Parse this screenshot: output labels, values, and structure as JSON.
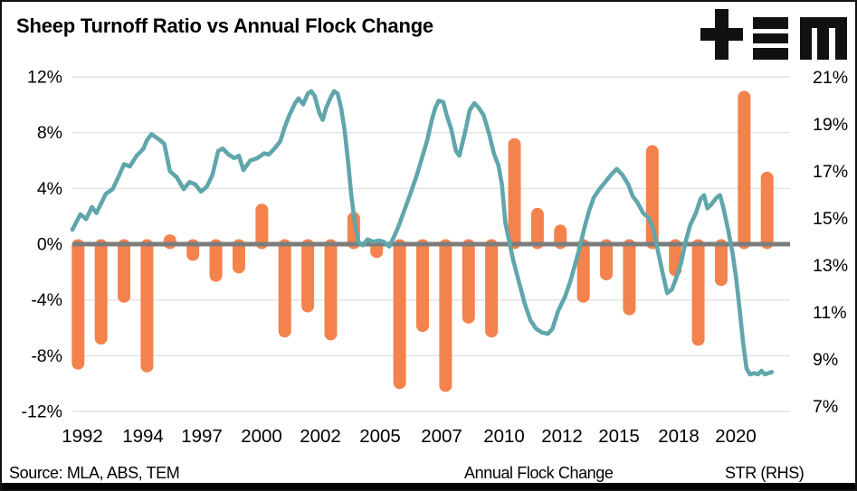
{
  "title": "Sheep Turnoff Ratio vs Annual Flock Change",
  "logo": {
    "name": "TEM logo"
  },
  "source_note": "Source: MLA, ABS, TEM",
  "legend": {
    "bar": {
      "label": "Annual Flock Change"
    },
    "line": {
      "label": "STR (RHS)"
    }
  },
  "colors": {
    "bar": "#F4824D",
    "line": "#60A6AB",
    "zero_line": "#7C7C7C",
    "gridline": "#E3E3E3",
    "text": "#000000",
    "logo": "#111111"
  },
  "chart_data": {
    "type": "bar+line combo (bars on left axis, line on right axis)",
    "title": "Sheep Turnoff Ratio vs Annual Flock Change",
    "x_axis": {
      "ticks": [
        "1992",
        "1994",
        "1997",
        "2000",
        "2002",
        "2005",
        "2007",
        "2010",
        "2012",
        "2015",
        "2018",
        "2020"
      ]
    },
    "left_axis": {
      "series": "Annual Flock Change",
      "ticks": [
        "12%",
        "8%",
        "4%",
        "0%",
        "-4%",
        "-8%",
        "-12%"
      ],
      "tick_values": [
        12,
        8,
        4,
        0,
        -4,
        -8,
        -12
      ],
      "range": [
        -12,
        12
      ],
      "unit": "%"
    },
    "right_axis": {
      "series": "STR (RHS)",
      "ticks": [
        "21%",
        "19%",
        "17%",
        "15%",
        "13%",
        "11%",
        "9%",
        "7%"
      ],
      "tick_values": [
        21,
        19,
        17,
        15,
        13,
        11,
        9,
        7
      ],
      "range": [
        7,
        21
      ],
      "unit": "%"
    },
    "grid": "horizontal light gridlines (left-axis ticks); thick gray zero line",
    "legend_position": "bottom",
    "bars": {
      "name": "Annual Flock Change",
      "axis": "left",
      "years": [
        1992,
        1993,
        1994,
        1995,
        1996,
        1997,
        1998,
        1999,
        2000,
        2001,
        2002,
        2003,
        2004,
        2005,
        2006,
        2007,
        2008,
        2009,
        2010,
        2011,
        2012,
        2013,
        2014,
        2015,
        2016,
        2017,
        2018,
        2019,
        2020,
        2021,
        2022
      ],
      "values": [
        -9.0,
        -7.2,
        -4.2,
        -9.2,
        0.7,
        -1.2,
        -2.7,
        -2.1,
        2.9,
        -6.7,
        -4.9,
        -6.9,
        2.3,
        -1.0,
        -10.4,
        -6.3,
        -10.6,
        -5.7,
        -6.7,
        7.6,
        2.6,
        1.4,
        -4.2,
        -2.6,
        -5.1,
        7.1,
        -2.3,
        -7.3,
        -3.0,
        11.0,
        5.2
      ]
    },
    "line": {
      "name": "STR (RHS)",
      "axis": "right",
      "points": [
        [
          1991.75,
          14.6
        ],
        [
          1992.1,
          15.25
        ],
        [
          1992.35,
          15.05
        ],
        [
          1992.6,
          15.55
        ],
        [
          1992.8,
          15.3
        ],
        [
          1993.0,
          15.7
        ],
        [
          1993.2,
          16.1
        ],
        [
          1993.5,
          16.3
        ],
        [
          1993.75,
          16.8
        ],
        [
          1994.0,
          17.35
        ],
        [
          1994.25,
          17.25
        ],
        [
          1994.55,
          17.7
        ],
        [
          1994.85,
          18.0
        ],
        [
          1995.0,
          18.35
        ],
        [
          1995.2,
          18.6
        ],
        [
          1995.5,
          18.4
        ],
        [
          1995.75,
          18.2
        ],
        [
          1996.0,
          17.05
        ],
        [
          1996.3,
          16.8
        ],
        [
          1996.6,
          16.3
        ],
        [
          1996.85,
          16.6
        ],
        [
          1997.1,
          16.5
        ],
        [
          1997.35,
          16.2
        ],
        [
          1997.6,
          16.4
        ],
        [
          1997.85,
          16.9
        ],
        [
          1998.1,
          17.9
        ],
        [
          1998.3,
          18.0
        ],
        [
          1998.55,
          17.75
        ],
        [
          1998.8,
          17.6
        ],
        [
          1999.0,
          17.7
        ],
        [
          1999.2,
          17.1
        ],
        [
          1999.5,
          17.5
        ],
        [
          1999.8,
          17.6
        ],
        [
          2000.1,
          17.8
        ],
        [
          2000.3,
          17.75
        ],
        [
          2000.55,
          18.0
        ],
        [
          2000.8,
          18.3
        ],
        [
          2001.0,
          18.9
        ],
        [
          2001.2,
          19.4
        ],
        [
          2001.45,
          19.9
        ],
        [
          2001.6,
          20.1
        ],
        [
          2001.8,
          19.85
        ],
        [
          2002.0,
          20.3
        ],
        [
          2002.15,
          20.4
        ],
        [
          2002.3,
          20.2
        ],
        [
          2002.5,
          19.5
        ],
        [
          2002.65,
          19.2
        ],
        [
          2002.8,
          19.7
        ],
        [
          2003.0,
          20.15
        ],
        [
          2003.15,
          20.4
        ],
        [
          2003.3,
          20.3
        ],
        [
          2003.45,
          19.7
        ],
        [
          2003.6,
          18.8
        ],
        [
          2003.75,
          17.5
        ],
        [
          2003.9,
          16.0
        ],
        [
          2004.05,
          14.9
        ],
        [
          2004.2,
          14.1
        ],
        [
          2004.4,
          13.95
        ],
        [
          2004.6,
          14.2
        ],
        [
          2004.85,
          14.1
        ],
        [
          2005.1,
          14.15
        ],
        [
          2005.3,
          14.1
        ],
        [
          2005.55,
          13.9
        ],
        [
          2005.75,
          14.3
        ],
        [
          2005.95,
          14.75
        ],
        [
          2006.2,
          15.4
        ],
        [
          2006.5,
          16.2
        ],
        [
          2006.75,
          16.9
        ],
        [
          2007.0,
          17.7
        ],
        [
          2007.2,
          18.35
        ],
        [
          2007.4,
          19.2
        ],
        [
          2007.55,
          19.7
        ],
        [
          2007.7,
          20.0
        ],
        [
          2007.9,
          19.95
        ],
        [
          2008.05,
          19.4
        ],
        [
          2008.25,
          18.8
        ],
        [
          2008.45,
          17.9
        ],
        [
          2008.6,
          17.7
        ],
        [
          2008.85,
          18.7
        ],
        [
          2009.05,
          19.6
        ],
        [
          2009.25,
          19.9
        ],
        [
          2009.45,
          19.7
        ],
        [
          2009.65,
          19.4
        ],
        [
          2009.9,
          18.6
        ],
        [
          2010.1,
          17.8
        ],
        [
          2010.3,
          17.3
        ],
        [
          2010.45,
          16.5
        ],
        [
          2010.6,
          14.9
        ],
        [
          2010.75,
          14.2
        ],
        [
          2010.95,
          13.3
        ],
        [
          2011.2,
          12.4
        ],
        [
          2011.45,
          11.5
        ],
        [
          2011.7,
          10.8
        ],
        [
          2011.95,
          10.45
        ],
        [
          2012.2,
          10.3
        ],
        [
          2012.45,
          10.25
        ],
        [
          2012.65,
          10.45
        ],
        [
          2012.9,
          11.2
        ],
        [
          2013.2,
          11.8
        ],
        [
          2013.45,
          12.5
        ],
        [
          2013.65,
          13.2
        ],
        [
          2013.85,
          13.9
        ],
        [
          2014.05,
          14.7
        ],
        [
          2014.25,
          15.4
        ],
        [
          2014.45,
          15.95
        ],
        [
          2014.7,
          16.3
        ],
        [
          2014.95,
          16.6
        ],
        [
          2015.2,
          16.9
        ],
        [
          2015.45,
          17.15
        ],
        [
          2015.7,
          16.9
        ],
        [
          2015.95,
          16.5
        ],
        [
          2016.15,
          16.0
        ],
        [
          2016.35,
          15.75
        ],
        [
          2016.6,
          15.3
        ],
        [
          2016.85,
          15.1
        ],
        [
          2017.05,
          14.6
        ],
        [
          2017.25,
          13.7
        ],
        [
          2017.45,
          12.8
        ],
        [
          2017.65,
          11.95
        ],
        [
          2017.85,
          12.1
        ],
        [
          2018.05,
          12.6
        ],
        [
          2018.25,
          13.2
        ],
        [
          2018.45,
          14.1
        ],
        [
          2018.65,
          14.8
        ],
        [
          2018.9,
          15.3
        ],
        [
          2019.1,
          15.9
        ],
        [
          2019.25,
          16.05
        ],
        [
          2019.4,
          15.5
        ],
        [
          2019.6,
          15.7
        ],
        [
          2019.8,
          15.95
        ],
        [
          2019.95,
          16.05
        ],
        [
          2020.1,
          15.5
        ],
        [
          2020.3,
          14.6
        ],
        [
          2020.5,
          13.6
        ],
        [
          2020.65,
          12.6
        ],
        [
          2020.8,
          11.3
        ],
        [
          2020.95,
          9.9
        ],
        [
          2021.1,
          8.8
        ],
        [
          2021.25,
          8.55
        ],
        [
          2021.45,
          8.6
        ],
        [
          2021.6,
          8.55
        ],
        [
          2021.75,
          8.7
        ],
        [
          2021.9,
          8.55
        ],
        [
          2022.05,
          8.6
        ],
        [
          2022.2,
          8.65
        ]
      ]
    }
  }
}
